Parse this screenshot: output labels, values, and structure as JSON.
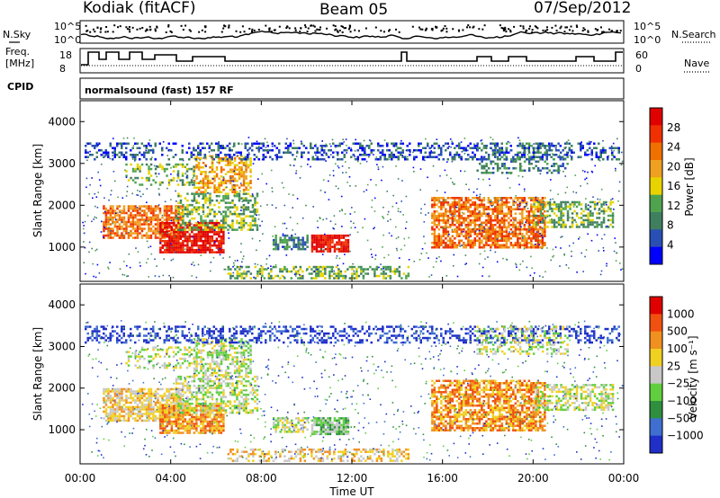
{
  "header": {
    "station": "Kodiak (fitACF)",
    "beam": "Beam 05",
    "date": "07/Sep/2012"
  },
  "noise_panel": {
    "left_label": "N.Sky",
    "right_label": "N.Search",
    "left_ticks": [
      "10^5",
      "10^0"
    ],
    "right_ticks": [
      "10^5",
      "10^0"
    ]
  },
  "freq_panel": {
    "left_label_1": "Freq.",
    "left_label_2": "[MHz]",
    "right_label": "Nave",
    "left_ticks": [
      "18",
      "8"
    ],
    "right_ticks": [
      "60",
      "0"
    ]
  },
  "cpid_panel": {
    "label": "CPID",
    "text": "normalsound (fast) 157 RF"
  },
  "colors": {
    "power_scale": [
      "#0000ff",
      "#2a4fb4",
      "#3f7f5f",
      "#4fa34f",
      "#e8d300",
      "#f0a020",
      "#f07000",
      "#f03000",
      "#e00000"
    ],
    "velocity_scale": [
      "#1f2fc8",
      "#3f6fd0",
      "#2f8f3f",
      "#5fcf3f",
      "#c8c8c8",
      "#f0d020",
      "#f09020",
      "#f05010",
      "#e00000"
    ]
  },
  "chart_data": [
    {
      "type": "heatmap",
      "title": "",
      "xlabel": "Time UT",
      "ylabel": "Slant Range [km]",
      "xlim": [
        "00:00",
        "24:00"
      ],
      "ylim": [
        180,
        4500
      ],
      "x_ticks": [
        "00:00",
        "04:00",
        "08:00",
        "12:00",
        "16:00",
        "20:00",
        "00:00"
      ],
      "y_ticks": [
        1000,
        2000,
        3000,
        4000
      ],
      "colorbar": {
        "label": "Power [dB]",
        "ticks": [
          "28",
          "24",
          "20",
          "16",
          "12",
          "8",
          "4"
        ],
        "range": [
          0,
          30
        ]
      }
    },
    {
      "type": "heatmap",
      "title": "",
      "xlabel": "Time UT",
      "ylabel": "Slant Range [km]",
      "xlim": [
        "00:00",
        "24:00"
      ],
      "ylim": [
        180,
        4500
      ],
      "x_ticks": [
        "00:00",
        "04:00",
        "08:00",
        "12:00",
        "16:00",
        "20:00",
        "00:00"
      ],
      "y_ticks": [
        1000,
        2000,
        3000,
        4000
      ],
      "colorbar": {
        "label": "Velocity [m s⁻¹]",
        "ticks": [
          "1000",
          "500",
          "100",
          "25",
          "−25",
          "−100",
          "−500",
          "−1000"
        ],
        "range": [
          -1000,
          1000
        ]
      }
    }
  ]
}
